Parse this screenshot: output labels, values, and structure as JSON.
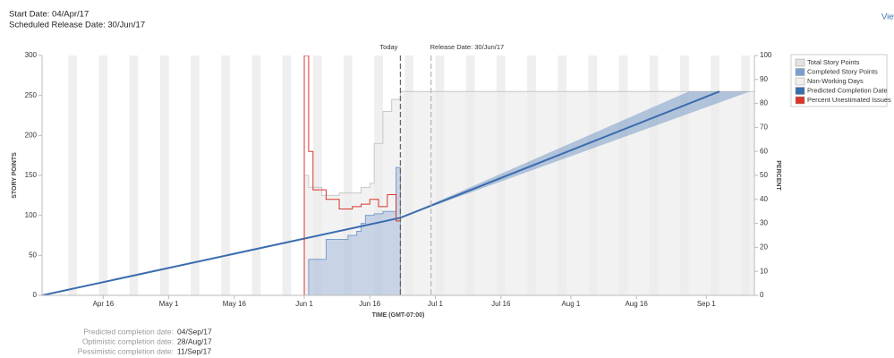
{
  "header": {
    "start": "Start Date: 04/Apr/17",
    "release": "Scheduled Release Date: 30/Jun/17",
    "link": "View"
  },
  "footer": [
    {
      "label": "Predicted completion date:",
      "value": "04/Sep/17"
    },
    {
      "label": "Optimistic completion date:",
      "value": "28/Aug/17"
    },
    {
      "label": "Pessimistic completion date:",
      "value": "11/Sep/17"
    }
  ],
  "chart_data": {
    "type": "line",
    "x_label": "TIME (GMT-07:00)",
    "y_label": "STORY POINTS",
    "y2_label": "PERCENT",
    "xlim": [
      "Apr 2",
      "Sep 12"
    ],
    "xticks": [
      "Apr 16",
      "May 1",
      "May 16",
      "Jun 1",
      "Jun 16",
      "Jul 1",
      "Jul 16",
      "Aug 1",
      "Aug 16",
      "Sep 1"
    ],
    "ylim": [
      0,
      300
    ],
    "yticks": [
      0,
      50,
      100,
      150,
      200,
      250,
      300
    ],
    "y2lim": [
      0,
      100
    ],
    "y2ticks": [
      0,
      10,
      20,
      30,
      40,
      50,
      60,
      70,
      80,
      90,
      100
    ],
    "markers": [
      {
        "label": "Today",
        "x": "Jun 23",
        "color": "#666666"
      },
      {
        "label": "Release Date: 30/Jun/17",
        "x": "Jun 30",
        "color": "#bbbbbb"
      }
    ],
    "non_working_days": {
      "name": "Non-Working Days",
      "color": "#efefef",
      "starts": [
        "Apr 8",
        "Apr 15",
        "Apr 22",
        "Apr 29",
        "May 6",
        "May 13",
        "May 20",
        "May 27",
        "Jun 3",
        "Jun 10",
        "Jun 17",
        "Jun 24",
        "Jul 1",
        "Jul 8",
        "Jul 15",
        "Jul 22",
        "Jul 29",
        "Aug 5",
        "Aug 12",
        "Aug 19",
        "Aug 26",
        "Sep 2",
        "Sep 9"
      ]
    },
    "series": [
      {
        "name": "Total Story Points",
        "color": "#c8c8c8",
        "x": [
          "Jun 1",
          "Jun 2",
          "Jun 5",
          "Jun 9",
          "Jun 14",
          "Jun 16",
          "Jun 17",
          "Jun 19",
          "Jun 21",
          "Jun 23",
          "Sep 12"
        ],
        "values": [
          150,
          135,
          125,
          128,
          135,
          140,
          190,
          230,
          245,
          255,
          255
        ]
      },
      {
        "name": "Completed Story Points",
        "color": "#7a9fcf",
        "x": [
          "Jun 1",
          "Jun 2",
          "Jun 6",
          "Jun 11",
          "Jun 13",
          "Jun 14",
          "Jun 15",
          "Jun 17",
          "Jun 19",
          "Jun 22",
          "Jun 23"
        ],
        "values": [
          0,
          45,
          70,
          75,
          80,
          90,
          100,
          102,
          105,
          160,
          160
        ]
      },
      {
        "name": "Predicted Completion Date",
        "color": "#3a6cae",
        "x": [
          "Apr 2",
          "Jun 23",
          "Sep 4"
        ],
        "values": [
          0,
          97,
          255
        ],
        "band": {
          "upper": {
            "x": [
              "Jun 23",
              "Aug 28",
              "Sep 12"
            ],
            "values": [
              97,
              255,
              255
            ]
          },
          "lower": {
            "x": [
              "Jun 23",
              "Sep 11",
              "Sep 12"
            ],
            "values": [
              97,
              255,
              255
            ]
          }
        }
      },
      {
        "name": "Percent Unestimated Issues",
        "color": "#d9372b",
        "axis": "y2",
        "x": [
          "Jun 1",
          "Jun 1",
          "Jun 2",
          "Jun 3",
          "Jun 6",
          "Jun 9",
          "Jun 12",
          "Jun 14",
          "Jun 16",
          "Jun 18",
          "Jun 20",
          "Jun 22",
          "Jun 23"
        ],
        "values": [
          0,
          100,
          60,
          44,
          40,
          36,
          37,
          38,
          40,
          37,
          42,
          31,
          31
        ]
      }
    ]
  }
}
